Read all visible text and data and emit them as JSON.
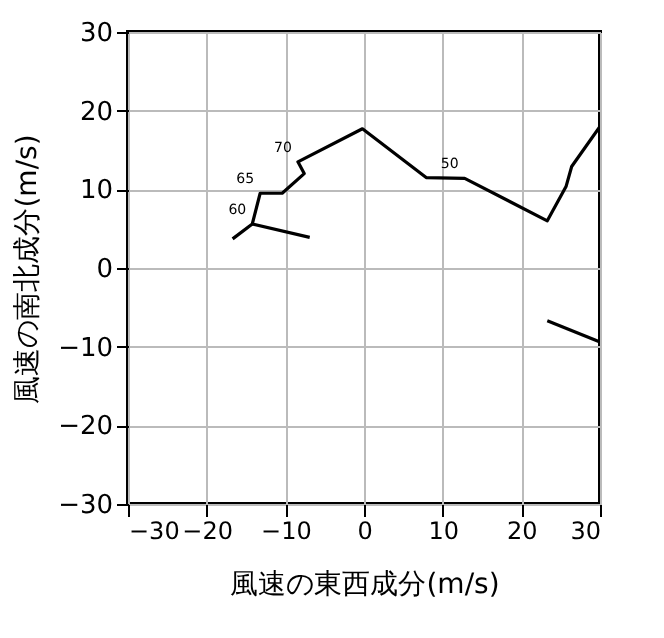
{
  "chart_data": {
    "type": "line",
    "xlabel": "風速の東西成分(m/s)",
    "ylabel": "風速の南北成分(m/s)",
    "xlim": [
      -30,
      30
    ],
    "ylim": [
      -30,
      30
    ],
    "xticks": [
      -30,
      -20,
      -10,
      0,
      10,
      20,
      30
    ],
    "yticks": [
      -30,
      -20,
      -10,
      0,
      10,
      20,
      30
    ],
    "grid": true,
    "legend": false,
    "series": [
      {
        "color": "#000000",
        "x": [
          -16.7,
          -14.2,
          -13.2,
          -10.4,
          -7.6,
          -8.4,
          -0.2,
          7.9,
          12.8,
          23.3,
          25.7,
          26.4,
          30
        ],
        "values": [
          3.7,
          5.6,
          9.5,
          9.5,
          12.0,
          13.5,
          17.7,
          11.5,
          11.4,
          6.0,
          10.4,
          12.9,
          18.0
        ]
      },
      {
        "color": "#000000",
        "x": [
          -14.2,
          -6.9
        ],
        "values": [
          5.6,
          3.9
        ]
      },
      {
        "color": "#000000",
        "x": [
          23.3,
          30
        ],
        "values": [
          -6.7,
          -9.4
        ]
      }
    ],
    "annotations": [
      {
        "text": "70",
        "x": -8.4,
        "y": 13.5
      },
      {
        "text": "65",
        "x": -13.2,
        "y": 9.5
      },
      {
        "text": "60",
        "x": -14.2,
        "y": 5.6
      },
      {
        "text": "50",
        "x": 12.8,
        "y": 11.4
      }
    ]
  }
}
